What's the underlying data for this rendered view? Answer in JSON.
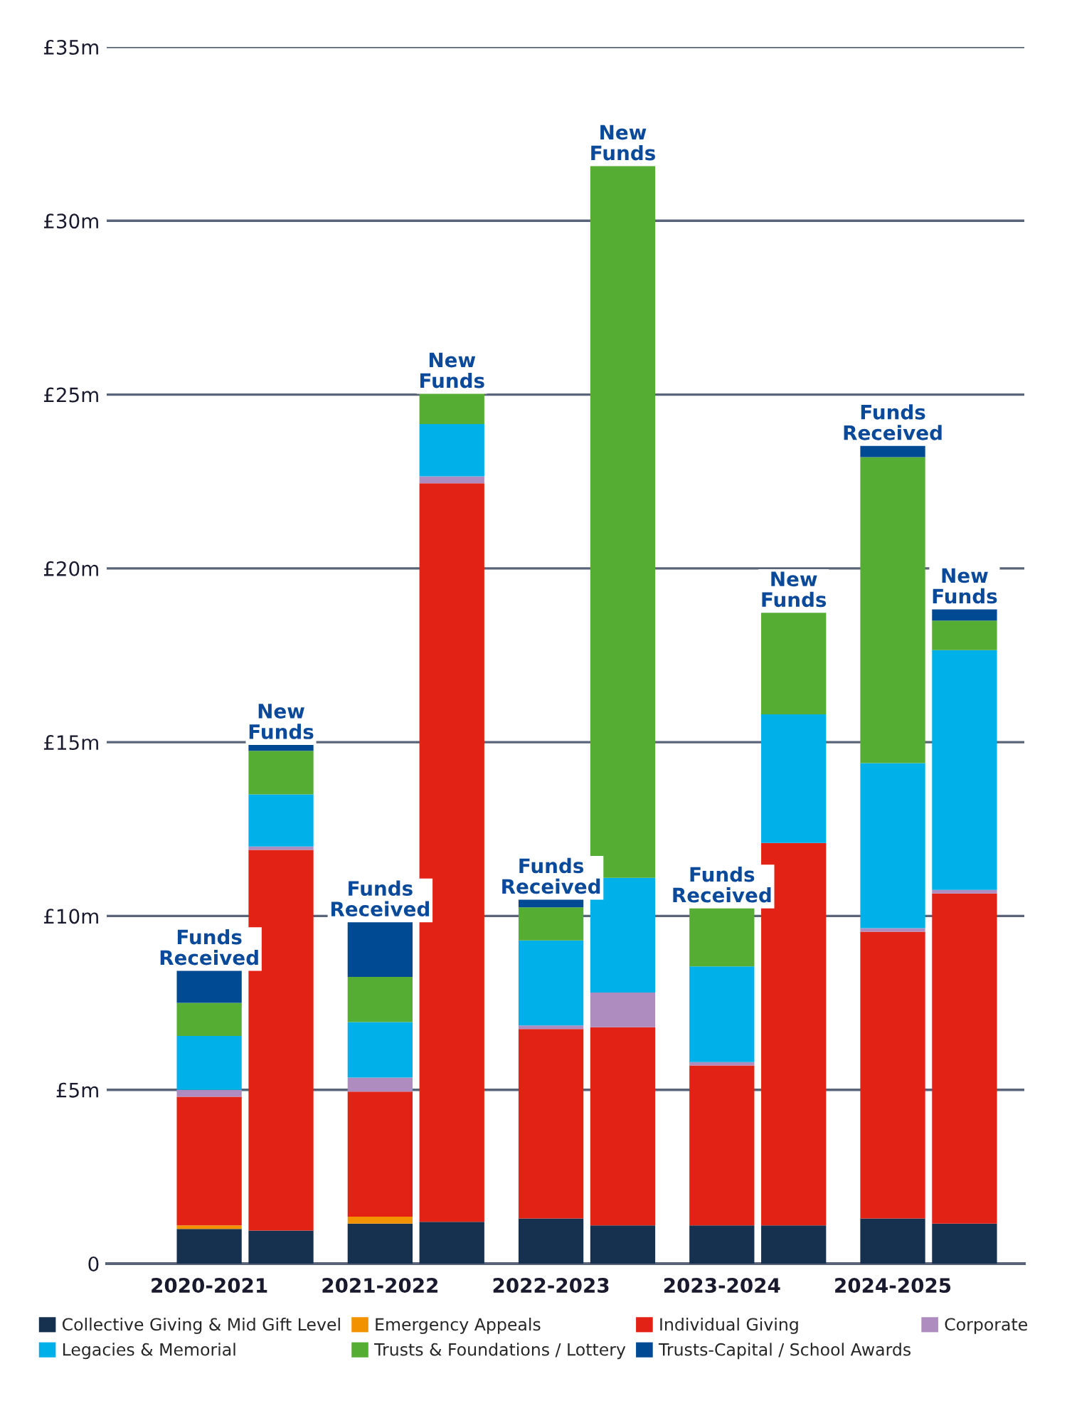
{
  "chart_data": {
    "type": "bar",
    "stacked": true,
    "categories": [
      "2020-2021",
      null,
      "2021-2022",
      null,
      "2022-2023",
      null,
      "2023-2024",
      null,
      "2024-2025",
      null
    ],
    "series": [
      {
        "name": "Collective Giving & Mid Gift Level",
        "color": "#16304f",
        "values": [
          1.0,
          0.95,
          1.15,
          1.2,
          1.3,
          1.1,
          1.1,
          1.1,
          1.3,
          1.15
        ]
      },
      {
        "name": "Emergency Appeals",
        "color": "#f39200",
        "values": [
          0.1,
          null,
          0.2,
          null,
          null,
          null,
          null,
          null,
          null,
          null
        ]
      },
      {
        "name": "Individual Giving",
        "color": "#e22214",
        "values": [
          3.7,
          10.95,
          3.6,
          21.25,
          5.45,
          5.7,
          4.6,
          11.0,
          8.25,
          9.5
        ]
      },
      {
        "name": "Corporate",
        "color": "#ae8cc0",
        "values": [
          0.2,
          0.1,
          0.4,
          0.2,
          0.1,
          1.0,
          0.1,
          null,
          0.1,
          0.1
        ]
      },
      {
        "name": "Legacies & Memorial",
        "color": "#00b0e8",
        "values": [
          1.55,
          1.5,
          1.6,
          1.5,
          2.45,
          3.3,
          2.75,
          3.7,
          4.75,
          6.9
        ]
      },
      {
        "name": "Trusts & Foundations / Lottery",
        "color": "#56ad33",
        "values": [
          0.95,
          1.25,
          1.3,
          0.95,
          0.95,
          20.55,
          1.75,
          3.0,
          8.8,
          0.85
        ]
      },
      {
        "name": "Trusts-Capital / School Awards",
        "color": "#004a93",
        "values": [
          1.0,
          0.25,
          1.65,
          null,
          0.3,
          null,
          null,
          null,
          0.35,
          0.4
        ]
      }
    ],
    "ylim": [
      0,
      35
    ],
    "yticks": [
      {
        "value": 0,
        "label": "0"
      },
      {
        "value": 5,
        "label": "£5m"
      },
      {
        "value": 10,
        "label": "£10m"
      },
      {
        "value": 15,
        "label": "£15m"
      },
      {
        "value": 20,
        "label": "£20m"
      },
      {
        "value": 25,
        "label": "£25m"
      },
      {
        "value": 30,
        "label": "£30m"
      },
      {
        "value": 35,
        "label": "£35m"
      }
    ],
    "annotations": [
      {
        "text": "Funds Received",
        "y": 8.5
      },
      {
        "text": "New Funds",
        "y": 15.0
      },
      {
        "text": "Funds Received",
        "y": 9.9
      },
      {
        "text": "New Funds",
        "y": 25.1
      },
      {
        "text": "Funds Received",
        "y": 10.55
      },
      {
        "text": "New Funds",
        "y": 31.65
      },
      {
        "text": "Funds Received",
        "y": 10.3
      },
      {
        "text": "New Funds",
        "y": 18.8
      },
      {
        "text": "Funds Received",
        "y": 23.6
      },
      {
        "text": "New Funds",
        "y": 18.9
      }
    ],
    "grid": "y",
    "legend": "bottom"
  }
}
